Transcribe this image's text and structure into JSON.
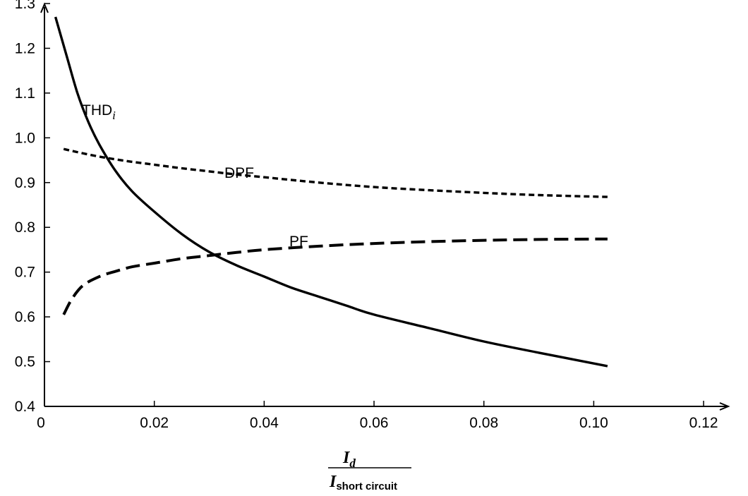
{
  "chart_data": {
    "type": "line",
    "title": "",
    "xlim": [
      0,
      0.125
    ],
    "ylim": [
      0.4,
      1.3
    ],
    "x_ticks": [
      0,
      0.02,
      0.04,
      0.06,
      0.08,
      0.1,
      0.12
    ],
    "x_tick_labels": [
      "0",
      "0.02",
      "0.04",
      "0.06",
      "0.08",
      "0.10",
      "0.12"
    ],
    "y_ticks": [
      0.4,
      0.5,
      0.6,
      0.7,
      0.8,
      0.9,
      1.0,
      1.1,
      1.2,
      1.3
    ],
    "y_tick_labels": [
      "0.4",
      "0.5",
      "0.6",
      "0.7",
      "0.8",
      "0.9",
      "1.0",
      "1.1",
      "1.2",
      "1.3"
    ],
    "xlabel": {
      "numerator": "I",
      "numerator_subscript": "d",
      "denominator": "I",
      "denominator_subscript": "short circuit"
    },
    "grid": false,
    "series": [
      {
        "name": "THD",
        "name_subscript": "i",
        "style": "solid",
        "color": "#000000",
        "x": [
          0.002,
          0.004,
          0.006,
          0.008,
          0.01,
          0.013,
          0.016,
          0.02,
          0.025,
          0.03,
          0.035,
          0.04,
          0.045,
          0.05,
          0.055,
          0.06,
          0.07,
          0.08,
          0.09,
          0.1025
        ],
        "y": [
          1.27,
          1.185,
          1.1,
          1.035,
          0.985,
          0.925,
          0.88,
          0.835,
          0.785,
          0.745,
          0.715,
          0.69,
          0.665,
          0.645,
          0.625,
          0.605,
          0.575,
          0.545,
          0.52,
          0.49
        ]
      },
      {
        "name": "DPF",
        "style": "dotted",
        "color": "#000000",
        "x": [
          0.0035,
          0.006,
          0.01,
          0.015,
          0.02,
          0.025,
          0.03,
          0.035,
          0.04,
          0.05,
          0.06,
          0.07,
          0.08,
          0.09,
          0.1025
        ],
        "y": [
          0.975,
          0.968,
          0.958,
          0.948,
          0.94,
          0.932,
          0.925,
          0.918,
          0.912,
          0.9,
          0.89,
          0.883,
          0.877,
          0.872,
          0.868
        ]
      },
      {
        "name": "PF",
        "style": "dashed",
        "color": "#000000",
        "x": [
          0.0035,
          0.005,
          0.007,
          0.01,
          0.013,
          0.016,
          0.02,
          0.025,
          0.03,
          0.035,
          0.04,
          0.05,
          0.06,
          0.07,
          0.08,
          0.09,
          0.1025
        ],
        "y": [
          0.605,
          0.64,
          0.67,
          0.69,
          0.702,
          0.712,
          0.72,
          0.73,
          0.737,
          0.744,
          0.75,
          0.758,
          0.764,
          0.768,
          0.771,
          0.773,
          0.774
        ]
      }
    ]
  }
}
